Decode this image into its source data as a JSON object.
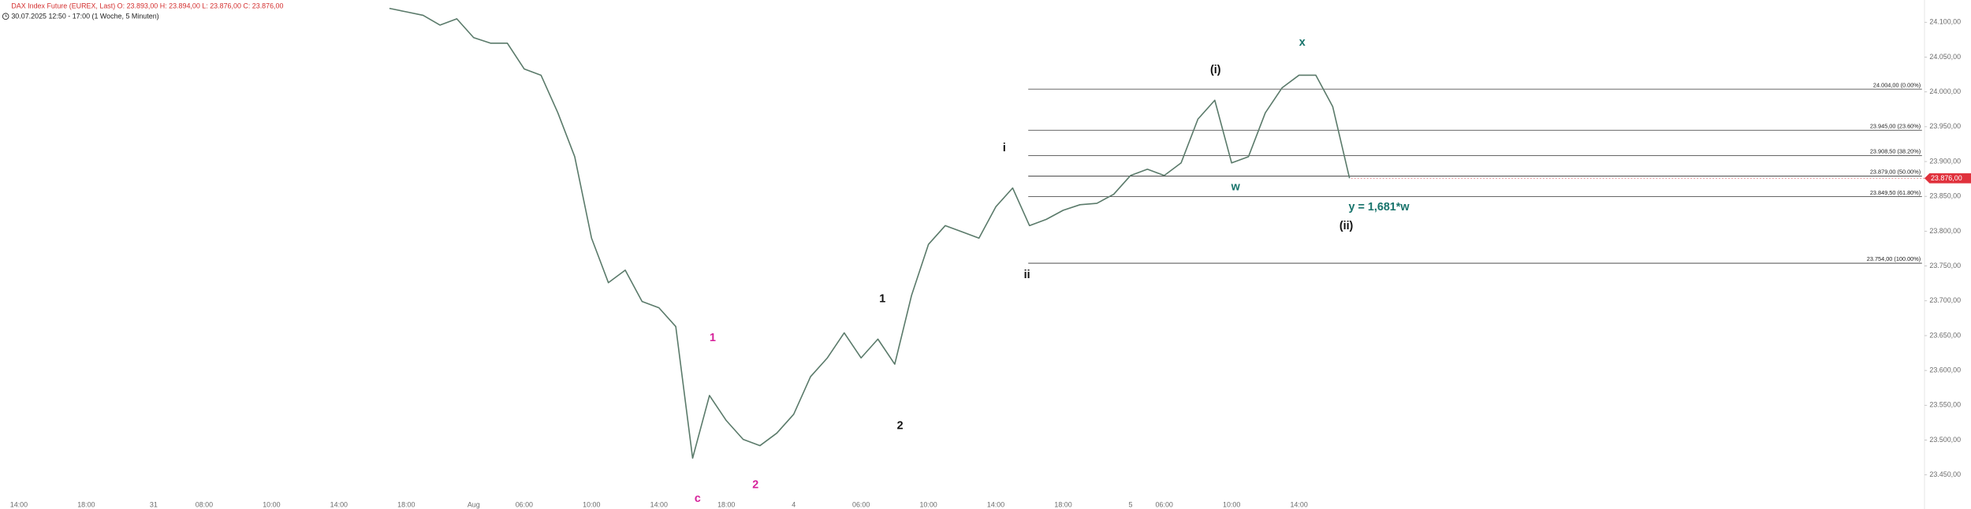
{
  "chart_data": {
    "type": "line",
    "title": "DAX Index Future (EUREX, Last)  O: 23.893,00  H: 23.894,00  L: 23.876,00  C: 23.876,00",
    "subtitle": "30.07.2025 12:50 - 17:00  (1 Woche, 5 Minuten)",
    "title_color": "#d32f2f",
    "categories": [
      "14:00",
      null,
      null,
      null,
      "18:00",
      null,
      null,
      null,
      "31",
      null,
      null,
      "08:00",
      null,
      null,
      null,
      "10:00",
      null,
      null,
      null,
      "14:00",
      null,
      null,
      null,
      "18:00",
      null,
      null,
      null,
      "Aug",
      null,
      null,
      "06:00",
      null,
      null,
      null,
      "10:00",
      null,
      null,
      null,
      "14:00",
      null,
      null,
      null,
      "18:00",
      null,
      null,
      null,
      "4",
      null,
      null,
      null,
      "06:00",
      null,
      null,
      null,
      "10:00",
      null,
      null,
      null,
      "14:00",
      null,
      null,
      null,
      "18:00",
      null,
      null,
      null,
      "5",
      null,
      "06:00",
      null,
      null,
      null,
      "10:00",
      null,
      null,
      null,
      "14:00",
      null,
      null,
      null
    ],
    "series": [
      {
        "name": "DAX Index Future",
        "color": "#5a7a6a",
        "values": [
          null,
          null,
          null,
          null,
          null,
          null,
          null,
          null,
          null,
          null,
          null,
          null,
          null,
          null,
          null,
          null,
          null,
          null,
          null,
          null,
          null,
          null,
          24120,
          24115,
          24110,
          24096,
          24105,
          24078,
          24070,
          24070,
          24033,
          24024,
          23970,
          23907,
          23790,
          23726,
          23744,
          23699,
          23690,
          23663,
          23474,
          23564,
          23528,
          23501,
          23492,
          23510,
          23537,
          23591,
          23618,
          23654,
          23618,
          23645,
          23609,
          23708,
          23781,
          23808,
          23799,
          23790,
          23835,
          23862,
          23808,
          23817,
          23830,
          23838,
          23840,
          23853,
          23880,
          23889,
          23880,
          23898,
          23961,
          23988,
          23898,
          23907,
          23970,
          24006,
          24024,
          24024,
          23979,
          23876
        ]
      }
    ],
    "ylim": [
      23401,
      24132
    ],
    "yticks": [
      {
        "value": 24100,
        "label": "24.100,00"
      },
      {
        "value": 24050,
        "label": "24.050,00"
      },
      {
        "value": 24000,
        "label": "24.000,00"
      },
      {
        "value": 23950,
        "label": "23.950,00"
      },
      {
        "value": 23900,
        "label": "23.900,00"
      },
      {
        "value": 23850,
        "label": "23.850,00"
      },
      {
        "value": 23800,
        "label": "23.800,00"
      },
      {
        "value": 23750,
        "label": "23.750,00"
      },
      {
        "value": 23700,
        "label": "23.700,00"
      },
      {
        "value": 23650,
        "label": "23.650,00"
      },
      {
        "value": 23600,
        "label": "23.600,00"
      },
      {
        "value": 23550,
        "label": "23.550,00"
      },
      {
        "value": 23500,
        "label": "23.500,00"
      },
      {
        "value": 23450,
        "label": "23.450,00"
      }
    ],
    "fib_levels": [
      {
        "value": 24004,
        "label": "24.004,00 (0.00%)"
      },
      {
        "value": 23945,
        "label": "23.945,00 (23.60%)"
      },
      {
        "value": 23908.5,
        "label": "23.908,50 (38.20%)"
      },
      {
        "value": 23879,
        "label": "23.879,00 (50.00%)"
      },
      {
        "value": 23849.5,
        "label": "23.849,50 (61.80%)"
      },
      {
        "value": 23754,
        "label": "23.754,00 (100.00%)"
      }
    ],
    "last_price": {
      "value": 23876,
      "label": "23.876,00"
    },
    "last_price_color": "#e0313c",
    "annotations": [
      {
        "text": "1",
        "color": "#d6219a"
      },
      {
        "text": "c",
        "color": "#d6219a"
      },
      {
        "text": "2",
        "color": "#d6219a"
      },
      {
        "text": "1",
        "color": "#111111"
      },
      {
        "text": "2",
        "color": "#111111"
      },
      {
        "text": "i",
        "color": "#111111"
      },
      {
        "text": "ii",
        "color": "#111111"
      },
      {
        "text": "(i)",
        "color": "#111111"
      },
      {
        "text": "w",
        "color": "#17736b"
      },
      {
        "text": "x",
        "color": "#17736b"
      },
      {
        "text": "y = 1,681*w",
        "color": "#17736b"
      },
      {
        "text": "(ii)",
        "color": "#111111"
      }
    ]
  }
}
